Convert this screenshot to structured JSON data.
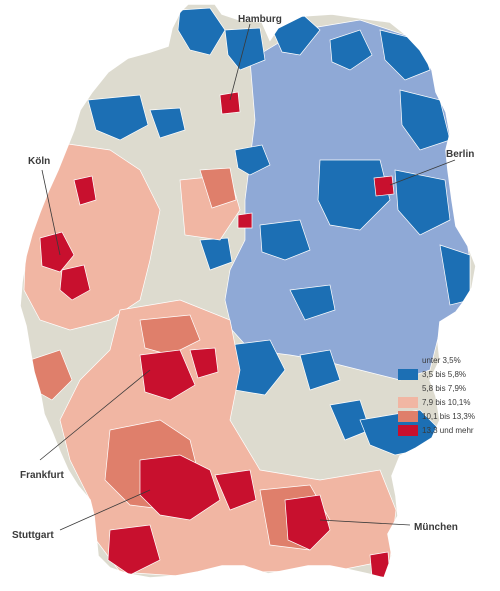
{
  "colors": {
    "c0": "#8fa9d6",
    "c1": "#1c6fb4",
    "c2": "#dddbcf",
    "c3": "#f1b6a3",
    "c4": "#df7f6b",
    "c5": "#c8102e",
    "border": "#ffffff"
  },
  "legend": [
    {
      "label": "unter 3,5%",
      "color_key": "c0"
    },
    {
      "label": "3,5 bis 5,8%",
      "color_key": "c1"
    },
    {
      "label": "5,8 bis 7,9%",
      "color_key": "c2"
    },
    {
      "label": "7,9 bis 10,1%",
      "color_key": "c3"
    },
    {
      "label": "10,1 bis 13,3%",
      "color_key": "c4"
    },
    {
      "label": "13,3 und mehr",
      "color_key": "c5"
    }
  ],
  "cities": {
    "hamburg": "Hamburg",
    "berlin": "Berlin",
    "koeln": "Köln",
    "frankfurt": "Frankfurt",
    "stuttgart": "Stuttgart",
    "muenchen": "München"
  }
}
